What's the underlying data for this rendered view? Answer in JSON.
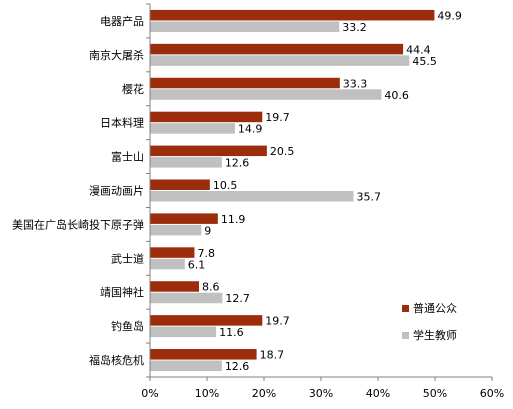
{
  "chart_data": {
    "type": "bar",
    "orientation": "horizontal",
    "categories": [
      "电器产品",
      "南京大屠杀",
      "樱花",
      "日本料理",
      "富士山",
      "漫画动画片",
      "美国在广岛长崎投下原子弹",
      "武士道",
      "靖国神社",
      "钓鱼岛",
      "福岛核危机"
    ],
    "series": [
      {
        "name": "普通公众",
        "color": "#9b2c0c",
        "values": [
          49.9,
          44.4,
          33.3,
          19.7,
          20.5,
          10.5,
          11.9,
          7.8,
          8.6,
          19.7,
          18.7
        ]
      },
      {
        "name": "学生教师",
        "color": "#c0c0c0",
        "values": [
          33.2,
          45.5,
          40.6,
          14.9,
          12.6,
          35.7,
          9,
          6.1,
          12.7,
          11.6,
          12.6
        ]
      }
    ],
    "value_labels": [
      [
        "49.9",
        "33.2"
      ],
      [
        "44.4",
        "45.5"
      ],
      [
        "33.3",
        "40.6"
      ],
      [
        "19.7",
        "14.9"
      ],
      [
        "20.5",
        "12.6"
      ],
      [
        "10.5",
        "35.7"
      ],
      [
        "11.9",
        "9"
      ],
      [
        "7.8",
        "6.1"
      ],
      [
        "8.6",
        "12.7"
      ],
      [
        "19.7",
        "11.6"
      ],
      [
        "18.7",
        "12.6"
      ]
    ],
    "xlim": [
      0,
      60
    ],
    "xticks": [
      "0%",
      "10%",
      "20%",
      "30%",
      "40%",
      "50%",
      "60%"
    ],
    "legend_position": "right",
    "grid": false
  }
}
